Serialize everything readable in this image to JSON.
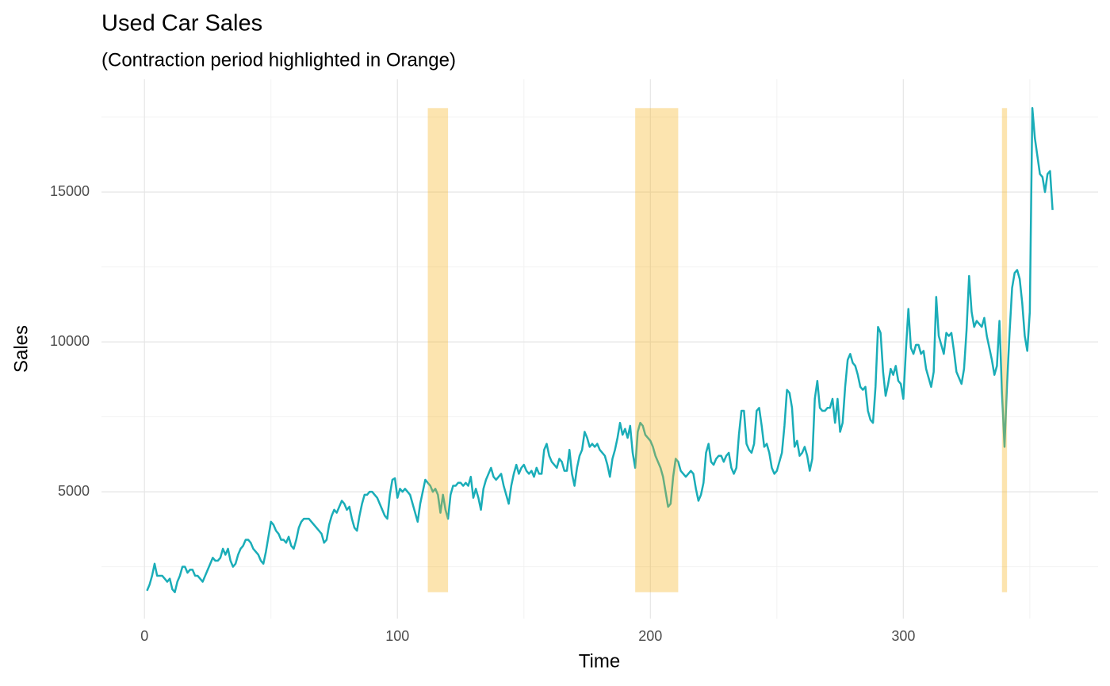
{
  "chart_data": {
    "type": "line",
    "title": "Used Car Sales",
    "subtitle": "(Contraction period highlighted in Orange)",
    "x_label": "Time",
    "y_label": "Sales",
    "xlim": [
      -17,
      377
    ],
    "ylim": [
      770,
      18760
    ],
    "xticks": [
      0,
      100,
      200,
      300
    ],
    "yticks": [
      5000,
      10000,
      15000
    ],
    "xminor": [
      50,
      150,
      250,
      350
    ],
    "yminor": [
      2500,
      7500,
      12500,
      17500
    ],
    "grid": true,
    "color": "#1aadb8",
    "highlight_color": "#f5b31a",
    "highlights": [
      {
        "start": 112,
        "end": 120
      },
      {
        "start": 194,
        "end": 211
      },
      {
        "start": 339,
        "end": 341
      }
    ],
    "x": [
      1,
      2,
      3,
      4,
      5,
      6,
      7,
      8,
      9,
      10,
      11,
      12,
      13,
      14,
      15,
      16,
      17,
      18,
      19,
      20,
      21,
      22,
      23,
      24,
      25,
      26,
      27,
      28,
      29,
      30,
      31,
      32,
      33,
      34,
      35,
      36,
      37,
      38,
      39,
      40,
      41,
      42,
      43,
      44,
      45,
      46,
      47,
      48,
      49,
      50,
      51,
      52,
      53,
      54,
      55,
      56,
      57,
      58,
      59,
      60,
      61,
      62,
      63,
      64,
      65,
      66,
      67,
      68,
      69,
      70,
      71,
      72,
      73,
      74,
      75,
      76,
      77,
      78,
      79,
      80,
      81,
      82,
      83,
      84,
      85,
      86,
      87,
      88,
      89,
      90,
      91,
      92,
      93,
      94,
      95,
      96,
      97,
      98,
      99,
      100,
      101,
      102,
      103,
      104,
      105,
      106,
      107,
      108,
      109,
      110,
      111,
      112,
      113,
      114,
      115,
      116,
      117,
      118,
      119,
      120,
      121,
      122,
      123,
      124,
      125,
      126,
      127,
      128,
      129,
      130,
      131,
      132,
      133,
      134,
      135,
      136,
      137,
      138,
      139,
      140,
      141,
      142,
      143,
      144,
      145,
      146,
      147,
      148,
      149,
      150,
      151,
      152,
      153,
      154,
      155,
      156,
      157,
      158,
      159,
      160,
      161,
      162,
      163,
      164,
      165,
      166,
      167,
      168,
      169,
      170,
      171,
      172,
      173,
      174,
      175,
      176,
      177,
      178,
      179,
      180,
      181,
      182,
      183,
      184,
      185,
      186,
      187,
      188,
      189,
      190,
      191,
      192,
      193,
      194,
      195,
      196,
      197,
      198,
      199,
      200,
      201,
      202,
      203,
      204,
      205,
      206,
      207,
      208,
      209,
      210,
      211,
      212,
      213,
      214,
      215,
      216,
      217,
      218,
      219,
      220,
      221,
      222,
      223,
      224,
      225,
      226,
      227,
      228,
      229,
      230,
      231,
      232,
      233,
      234,
      235,
      236,
      237,
      238,
      239,
      240,
      241,
      242,
      243,
      244,
      245,
      246,
      247,
      248,
      249,
      250,
      251,
      252,
      253,
      254,
      255,
      256,
      257,
      258,
      259,
      260,
      261,
      262,
      263,
      264,
      265,
      266,
      267,
      268,
      269,
      270,
      271,
      272,
      273,
      274,
      275,
      276,
      277,
      278,
      279,
      280,
      281,
      282,
      283,
      284,
      285,
      286,
      287,
      288,
      289,
      290,
      291,
      292,
      293,
      294,
      295,
      296,
      297,
      298,
      299,
      300,
      301,
      302,
      303,
      304,
      305,
      306,
      307,
      308,
      309,
      310,
      311,
      312,
      313,
      314,
      315,
      316,
      317,
      318,
      319,
      320,
      321,
      322,
      323,
      324,
      325,
      326,
      327,
      328,
      329,
      330,
      331,
      332,
      333,
      334,
      335,
      336,
      337,
      338,
      339,
      340,
      341,
      342,
      343,
      344,
      345,
      346,
      347,
      348,
      349,
      350,
      351,
      352,
      353,
      354,
      355,
      356,
      357,
      358,
      359
    ],
    "values": [
      1700,
      1900,
      2200,
      2600,
      2200,
      2200,
      2200,
      2100,
      2000,
      2100,
      1750,
      1650,
      2000,
      2200,
      2500,
      2500,
      2300,
      2400,
      2400,
      2200,
      2200,
      2100,
      2000,
      2200,
      2400,
      2600,
      2800,
      2700,
      2700,
      2800,
      3100,
      2900,
      3100,
      2700,
      2500,
      2600,
      2900,
      3100,
      3200,
      3400,
      3400,
      3300,
      3100,
      3000,
      2900,
      2700,
      2600,
      3000,
      3500,
      4000,
      3900,
      3700,
      3600,
      3400,
      3400,
      3300,
      3500,
      3200,
      3100,
      3400,
      3800,
      4000,
      4100,
      4100,
      4100,
      4000,
      3900,
      3800,
      3700,
      3600,
      3300,
      3400,
      3900,
      4200,
      4400,
      4300,
      4500,
      4700,
      4600,
      4400,
      4500,
      4100,
      3800,
      3700,
      4200,
      4600,
      4900,
      4900,
      5000,
      5000,
      4900,
      4800,
      4600,
      4400,
      4200,
      4100,
      4900,
      5400,
      5450,
      4800,
      5100,
      5000,
      5100,
      5000,
      4900,
      4600,
      4300,
      4000,
      4600,
      5000,
      5400,
      5300,
      5200,
      5000,
      5100,
      4900,
      4300,
      4900,
      4400,
      4100,
      4900,
      5200,
      5200,
      5300,
      5300,
      5200,
      5300,
      5200,
      5500,
      4800,
      5100,
      4800,
      4400,
      5100,
      5400,
      5600,
      5800,
      5500,
      5400,
      5500,
      5600,
      5200,
      4900,
      4600,
      5200,
      5600,
      5900,
      5600,
      5800,
      5900,
      5700,
      5600,
      5700,
      5500,
      5800,
      5600,
      5600,
      6400,
      6600,
      6200,
      6000,
      5900,
      5800,
      6100,
      6000,
      5700,
      5700,
      6400,
      5600,
      5200,
      5800,
      6200,
      6400,
      7000,
      6800,
      6500,
      6600,
      6500,
      6600,
      6400,
      6300,
      6200,
      5900,
      5500,
      6100,
      6400,
      6800,
      7300,
      6900,
      7100,
      6800,
      7200,
      6300,
      5800,
      7000,
      7300,
      7200,
      6900,
      6800,
      6700,
      6500,
      6200,
      6000,
      5800,
      5500,
      5000,
      4500,
      4600,
      5500,
      6100,
      6000,
      5700,
      5600,
      5500,
      5600,
      5700,
      5600,
      5100,
      4700,
      4900,
      5300,
      6300,
      6600,
      6000,
      5900,
      6100,
      6200,
      6200,
      6000,
      6200,
      6300,
      5800,
      5600,
      5800,
      6900,
      7700,
      7700,
      6600,
      6400,
      6300,
      6600,
      7700,
      7800,
      7200,
      6500,
      6600,
      6300,
      5800,
      5600,
      5700,
      6000,
      6300,
      7200,
      8400,
      8300,
      7800,
      6500,
      6700,
      6200,
      6300,
      6500,
      6200,
      5700,
      6100,
      8100,
      8700,
      7800,
      7700,
      7700,
      7800,
      7800,
      8100,
      7300,
      8100,
      7000,
      7300,
      8500,
      9400,
      9600,
      9300,
      9200,
      8900,
      8500,
      8400,
      8500,
      7700,
      7400,
      7300,
      8500,
      10500,
      10300,
      9000,
      8200,
      8600,
      9100,
      8900,
      9200,
      8700,
      8600,
      8100,
      9700,
      11100,
      9800,
      9600,
      9900,
      9900,
      9600,
      9700,
      9100,
      8800,
      8500,
      9000,
      11500,
      10200,
      9900,
      9600,
      10300,
      10200,
      10300,
      9700,
      9000,
      8800,
      8600,
      9100,
      10400,
      12200,
      11000,
      10500,
      10700,
      10600,
      10500,
      10800,
      10200,
      9800,
      9400,
      8900,
      9200,
      10700,
      8300,
      6500,
      8600,
      10300,
      11800,
      12300,
      12400,
      12100,
      11300,
      10200,
      9700,
      11000,
      17800,
      16800,
      16200,
      15600,
      15500,
      15000,
      15600,
      15700,
      14400
    ]
  }
}
